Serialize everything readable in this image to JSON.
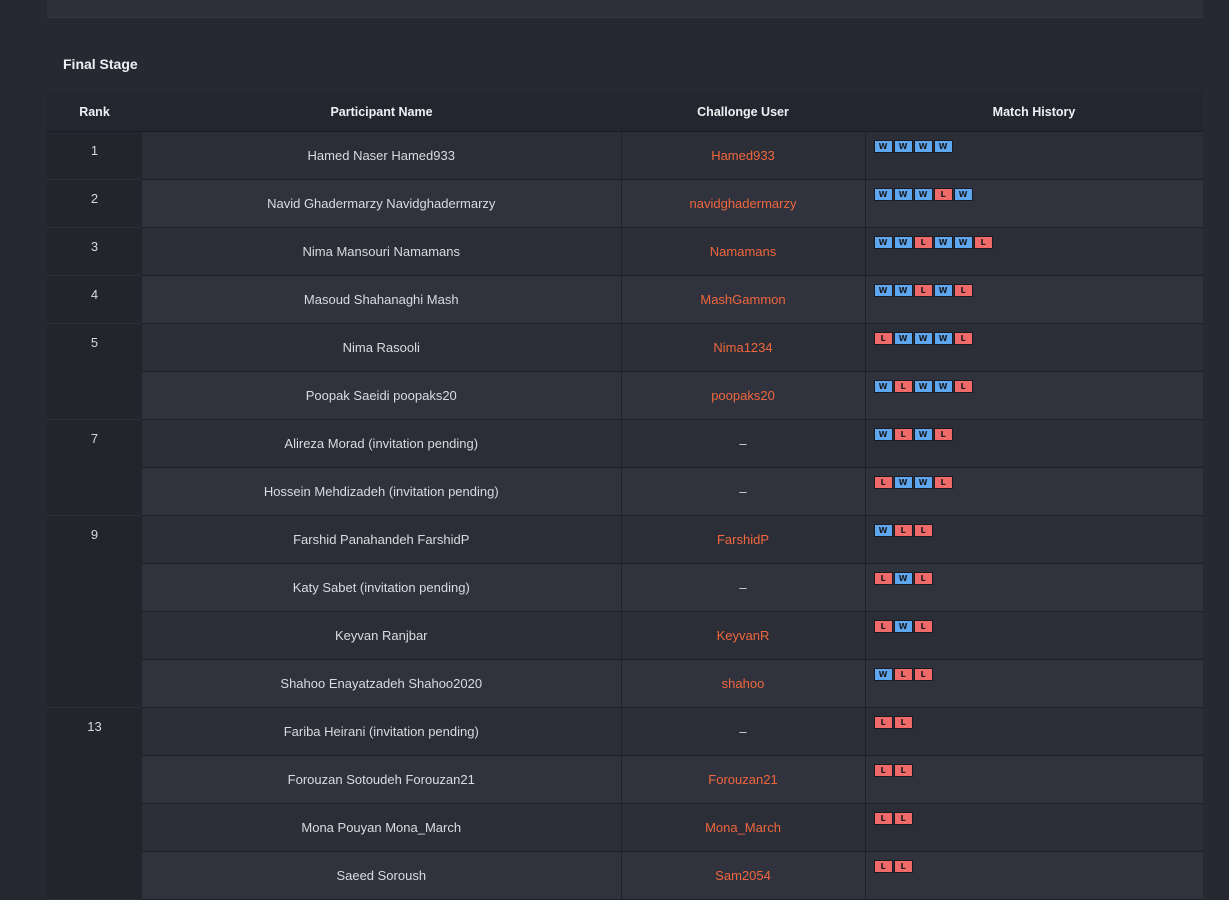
{
  "section_title": "Final Stage",
  "colors": {
    "win": "#5ea6ee",
    "loss": "#f06a6a",
    "link": "#f0663e"
  },
  "columns": [
    "Rank",
    "Participant Name",
    "Challonge User",
    "Match History"
  ],
  "rows": [
    {
      "rank": "1",
      "name": "Hamed Naser Hamed933",
      "user": "Hamed933",
      "history": [
        "W",
        "W",
        "W",
        "W"
      ]
    },
    {
      "rank": "2",
      "name": "Navid Ghadermarzy Navidghadermarzy",
      "user": "navidghadermarzy",
      "history": [
        "W",
        "W",
        "W",
        "L",
        "W"
      ]
    },
    {
      "rank": "3",
      "name": "Nima Mansouri Namamans",
      "user": "Namamans",
      "history": [
        "W",
        "W",
        "L",
        "W",
        "W",
        "L"
      ]
    },
    {
      "rank": "4",
      "name": "Masoud Shahanaghi Mash",
      "user": "MashGammon",
      "history": [
        "W",
        "W",
        "L",
        "W",
        "L"
      ]
    },
    {
      "rank": "5",
      "name": "Nima Rasooli",
      "user": "Nima1234",
      "history": [
        "L",
        "W",
        "W",
        "W",
        "L"
      ]
    },
    {
      "rank": "",
      "name": "Poopak Saeidi poopaks20",
      "user": "poopaks20",
      "history": [
        "W",
        "L",
        "W",
        "W",
        "L"
      ]
    },
    {
      "rank": "7",
      "name": "Alireza Morad (invitation pending)",
      "user": "–",
      "history": [
        "W",
        "L",
        "W",
        "L"
      ]
    },
    {
      "rank": "",
      "name": "Hossein Mehdizadeh (invitation pending)",
      "user": "–",
      "history": [
        "L",
        "W",
        "W",
        "L"
      ]
    },
    {
      "rank": "9",
      "name": "Farshid Panahandeh FarshidP",
      "user": "FarshidP",
      "history": [
        "W",
        "L",
        "L"
      ]
    },
    {
      "rank": "",
      "name": "Katy Sabet (invitation pending)",
      "user": "–",
      "history": [
        "L",
        "W",
        "L"
      ]
    },
    {
      "rank": "",
      "name": "Keyvan Ranjbar",
      "user": "KeyvanR",
      "history": [
        "L",
        "W",
        "L"
      ]
    },
    {
      "rank": "",
      "name": "Shahoo Enayatzadeh Shahoo2020",
      "user": "shahoo",
      "history": [
        "W",
        "L",
        "L"
      ]
    },
    {
      "rank": "13",
      "name": "Fariba Heirani (invitation pending)",
      "user": "–",
      "history": [
        "L",
        "L"
      ]
    },
    {
      "rank": "",
      "name": "Forouzan Sotoudeh Forouzan21",
      "user": "Forouzan21",
      "history": [
        "L",
        "L"
      ]
    },
    {
      "rank": "",
      "name": "Mona Pouyan Mona_March",
      "user": "Mona_March",
      "history": [
        "L",
        "L"
      ]
    },
    {
      "rank": "",
      "name": "Saeed Soroush",
      "user": "Sam2054",
      "history": [
        "L",
        "L"
      ]
    }
  ]
}
